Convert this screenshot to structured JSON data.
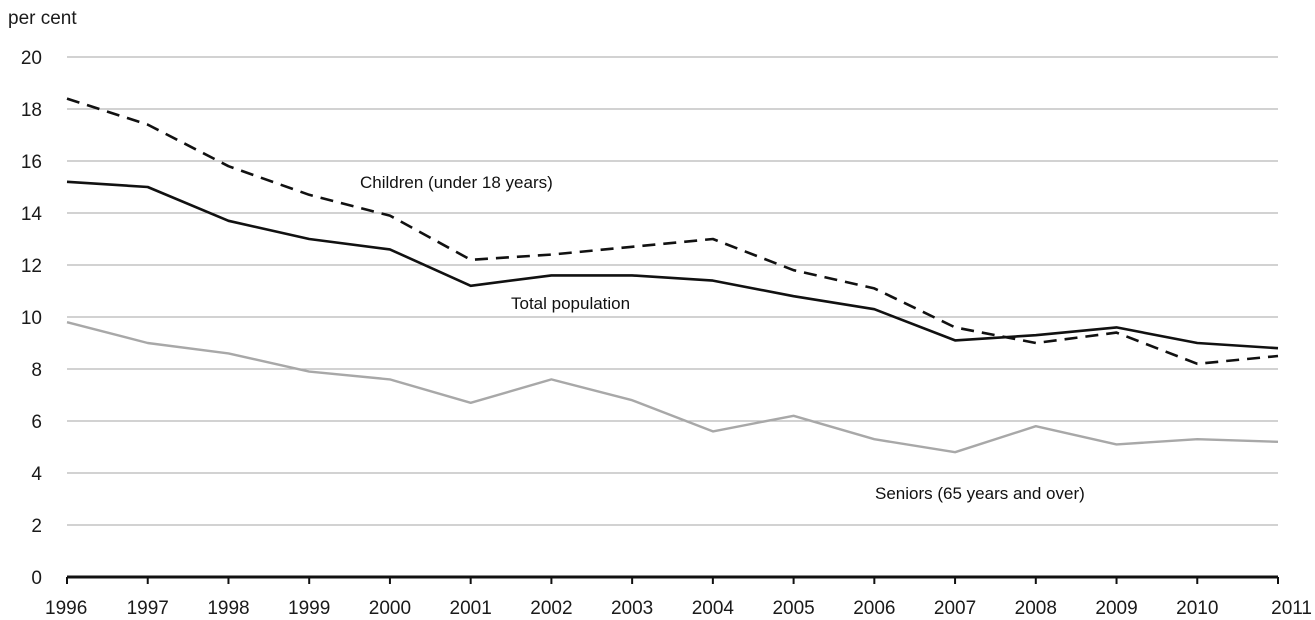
{
  "chart_data": {
    "type": "line",
    "ylabel": "per cent",
    "ylim": [
      0,
      20
    ],
    "yticks": [
      0,
      2,
      4,
      6,
      8,
      10,
      12,
      14,
      16,
      18,
      20
    ],
    "grid": true,
    "legend": "none (series labelled directly on plot)",
    "categories": [
      "1996",
      "1997",
      "1998",
      "1999",
      "2000",
      "2001",
      "2002",
      "2003",
      "2004",
      "2005",
      "2006",
      "2007",
      "2008",
      "2009",
      "2010",
      "2011"
    ],
    "series": [
      {
        "name": "Children (under 18 years)",
        "style": "dashed",
        "color": "#111111",
        "values": [
          18.4,
          17.4,
          15.8,
          14.7,
          13.9,
          12.2,
          12.4,
          12.7,
          13.0,
          11.8,
          11.1,
          9.6,
          9.0,
          9.4,
          8.2,
          8.5
        ]
      },
      {
        "name": "Total population",
        "style": "solid",
        "color": "#111111",
        "values": [
          15.2,
          15.0,
          13.7,
          13.0,
          12.6,
          11.2,
          11.6,
          11.6,
          11.4,
          10.8,
          10.3,
          9.1,
          9.3,
          9.6,
          9.0,
          8.8
        ]
      },
      {
        "name": "Seniors (65 years and over)",
        "style": "solid",
        "color": "#a8a8a8",
        "values": [
          9.8,
          9.0,
          8.6,
          7.9,
          7.6,
          6.7,
          7.6,
          6.8,
          5.6,
          6.2,
          5.3,
          4.8,
          5.8,
          5.1,
          5.3,
          5.2
        ]
      }
    ]
  }
}
